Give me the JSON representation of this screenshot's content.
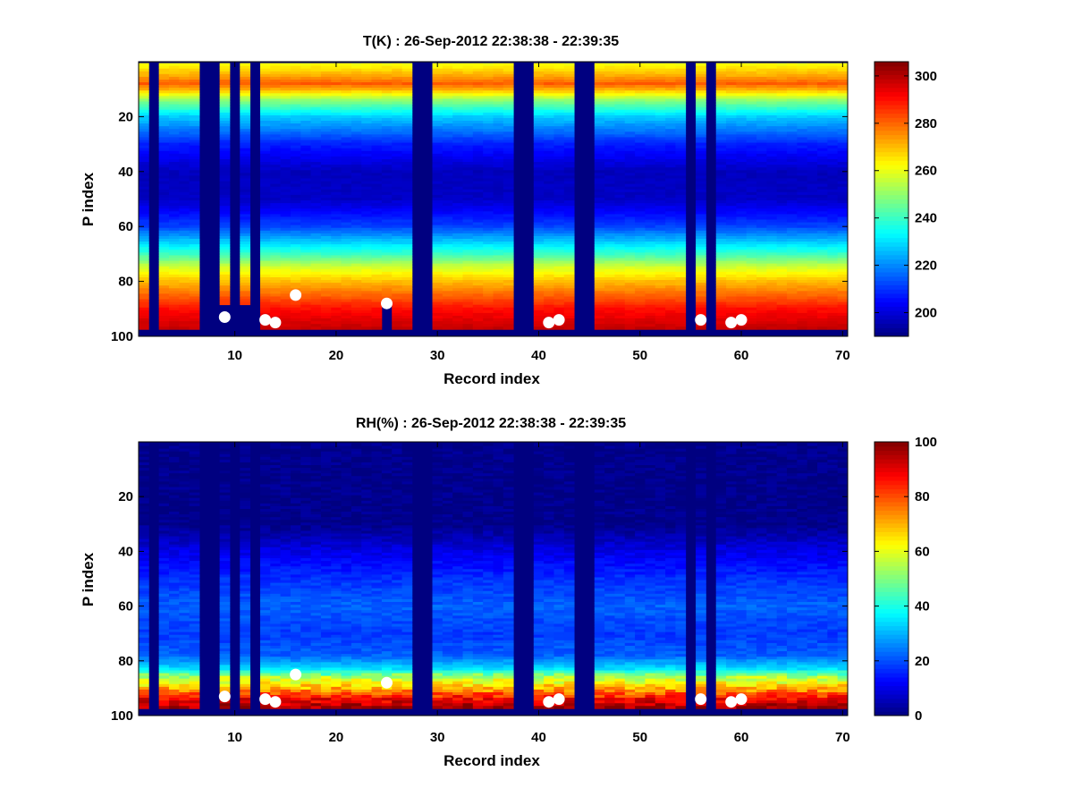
{
  "chart_data": [
    {
      "type": "heatmap",
      "title": "T(K) : 26-Sep-2012 22:38:38 - 22:39:35",
      "xlabel": "Record index",
      "ylabel": "P index",
      "xlim": [
        0.5,
        70.5
      ],
      "ylim": [
        100,
        0
      ],
      "xticks": [
        10,
        20,
        30,
        40,
        50,
        60,
        70
      ],
      "yticks": [
        20,
        40,
        60,
        80,
        100
      ],
      "colormap": "jet",
      "colorbar": {
        "min": 190,
        "max": 306,
        "ticks": [
          200,
          220,
          240,
          260,
          280,
          300
        ]
      },
      "valid_levels": [
        1,
        97
      ],
      "missing_records": [
        2,
        7,
        8,
        10,
        12,
        28,
        29,
        38,
        39,
        44,
        45,
        55,
        57
      ],
      "bottom_bad_records": [
        9,
        10,
        11,
        12,
        25
      ],
      "profile": {
        "p_index": [
          1,
          5,
          8,
          10,
          14,
          20,
          30,
          40,
          50,
          60,
          70,
          75,
          80,
          85,
          90,
          95,
          97
        ],
        "value": [
          262,
          272,
          281,
          272,
          250,
          228,
          208,
          197,
          198,
          212,
          240,
          258,
          270,
          280,
          290,
          296,
          298
        ]
      },
      "markers": [
        {
          "record": 9,
          "p_index": 93
        },
        {
          "record": 13,
          "p_index": 94
        },
        {
          "record": 14,
          "p_index": 95
        },
        {
          "record": 16,
          "p_index": 85
        },
        {
          "record": 25,
          "p_index": 88
        },
        {
          "record": 41,
          "p_index": 95
        },
        {
          "record": 42,
          "p_index": 94
        },
        {
          "record": 56,
          "p_index": 94
        },
        {
          "record": 59,
          "p_index": 95
        },
        {
          "record": 60,
          "p_index": 94
        }
      ]
    },
    {
      "type": "heatmap",
      "title": "RH(%) : 26-Sep-2012 22:38:38 - 22:39:35",
      "xlabel": "Record index",
      "ylabel": "P index",
      "xlim": [
        0.5,
        70.5
      ],
      "ylim": [
        100,
        0
      ],
      "xticks": [
        10,
        20,
        30,
        40,
        50,
        60,
        70
      ],
      "yticks": [
        20,
        40,
        60,
        80,
        100
      ],
      "colormap": "jet",
      "colorbar": {
        "min": 0,
        "max": 100,
        "ticks": [
          0,
          20,
          40,
          60,
          80,
          100
        ]
      },
      "valid_levels": [
        1,
        97
      ],
      "missing_records": [
        2,
        7,
        8,
        10,
        12,
        28,
        29,
        38,
        39,
        44,
        45,
        55,
        57
      ],
      "profile": {
        "p_index": [
          1,
          30,
          35,
          40,
          50,
          60,
          70,
          78,
          83,
          86,
          88,
          90,
          94,
          97
        ],
        "value": [
          1,
          1,
          5,
          10,
          17,
          22,
          18,
          22,
          35,
          55,
          62,
          70,
          88,
          97
        ]
      },
      "markers": [
        {
          "record": 9,
          "p_index": 93
        },
        {
          "record": 13,
          "p_index": 94
        },
        {
          "record": 14,
          "p_index": 95
        },
        {
          "record": 16,
          "p_index": 85
        },
        {
          "record": 25,
          "p_index": 88
        },
        {
          "record": 41,
          "p_index": 95
        },
        {
          "record": 42,
          "p_index": 94
        },
        {
          "record": 56,
          "p_index": 94
        },
        {
          "record": 59,
          "p_index": 95
        },
        {
          "record": 60,
          "p_index": 94
        }
      ]
    }
  ]
}
